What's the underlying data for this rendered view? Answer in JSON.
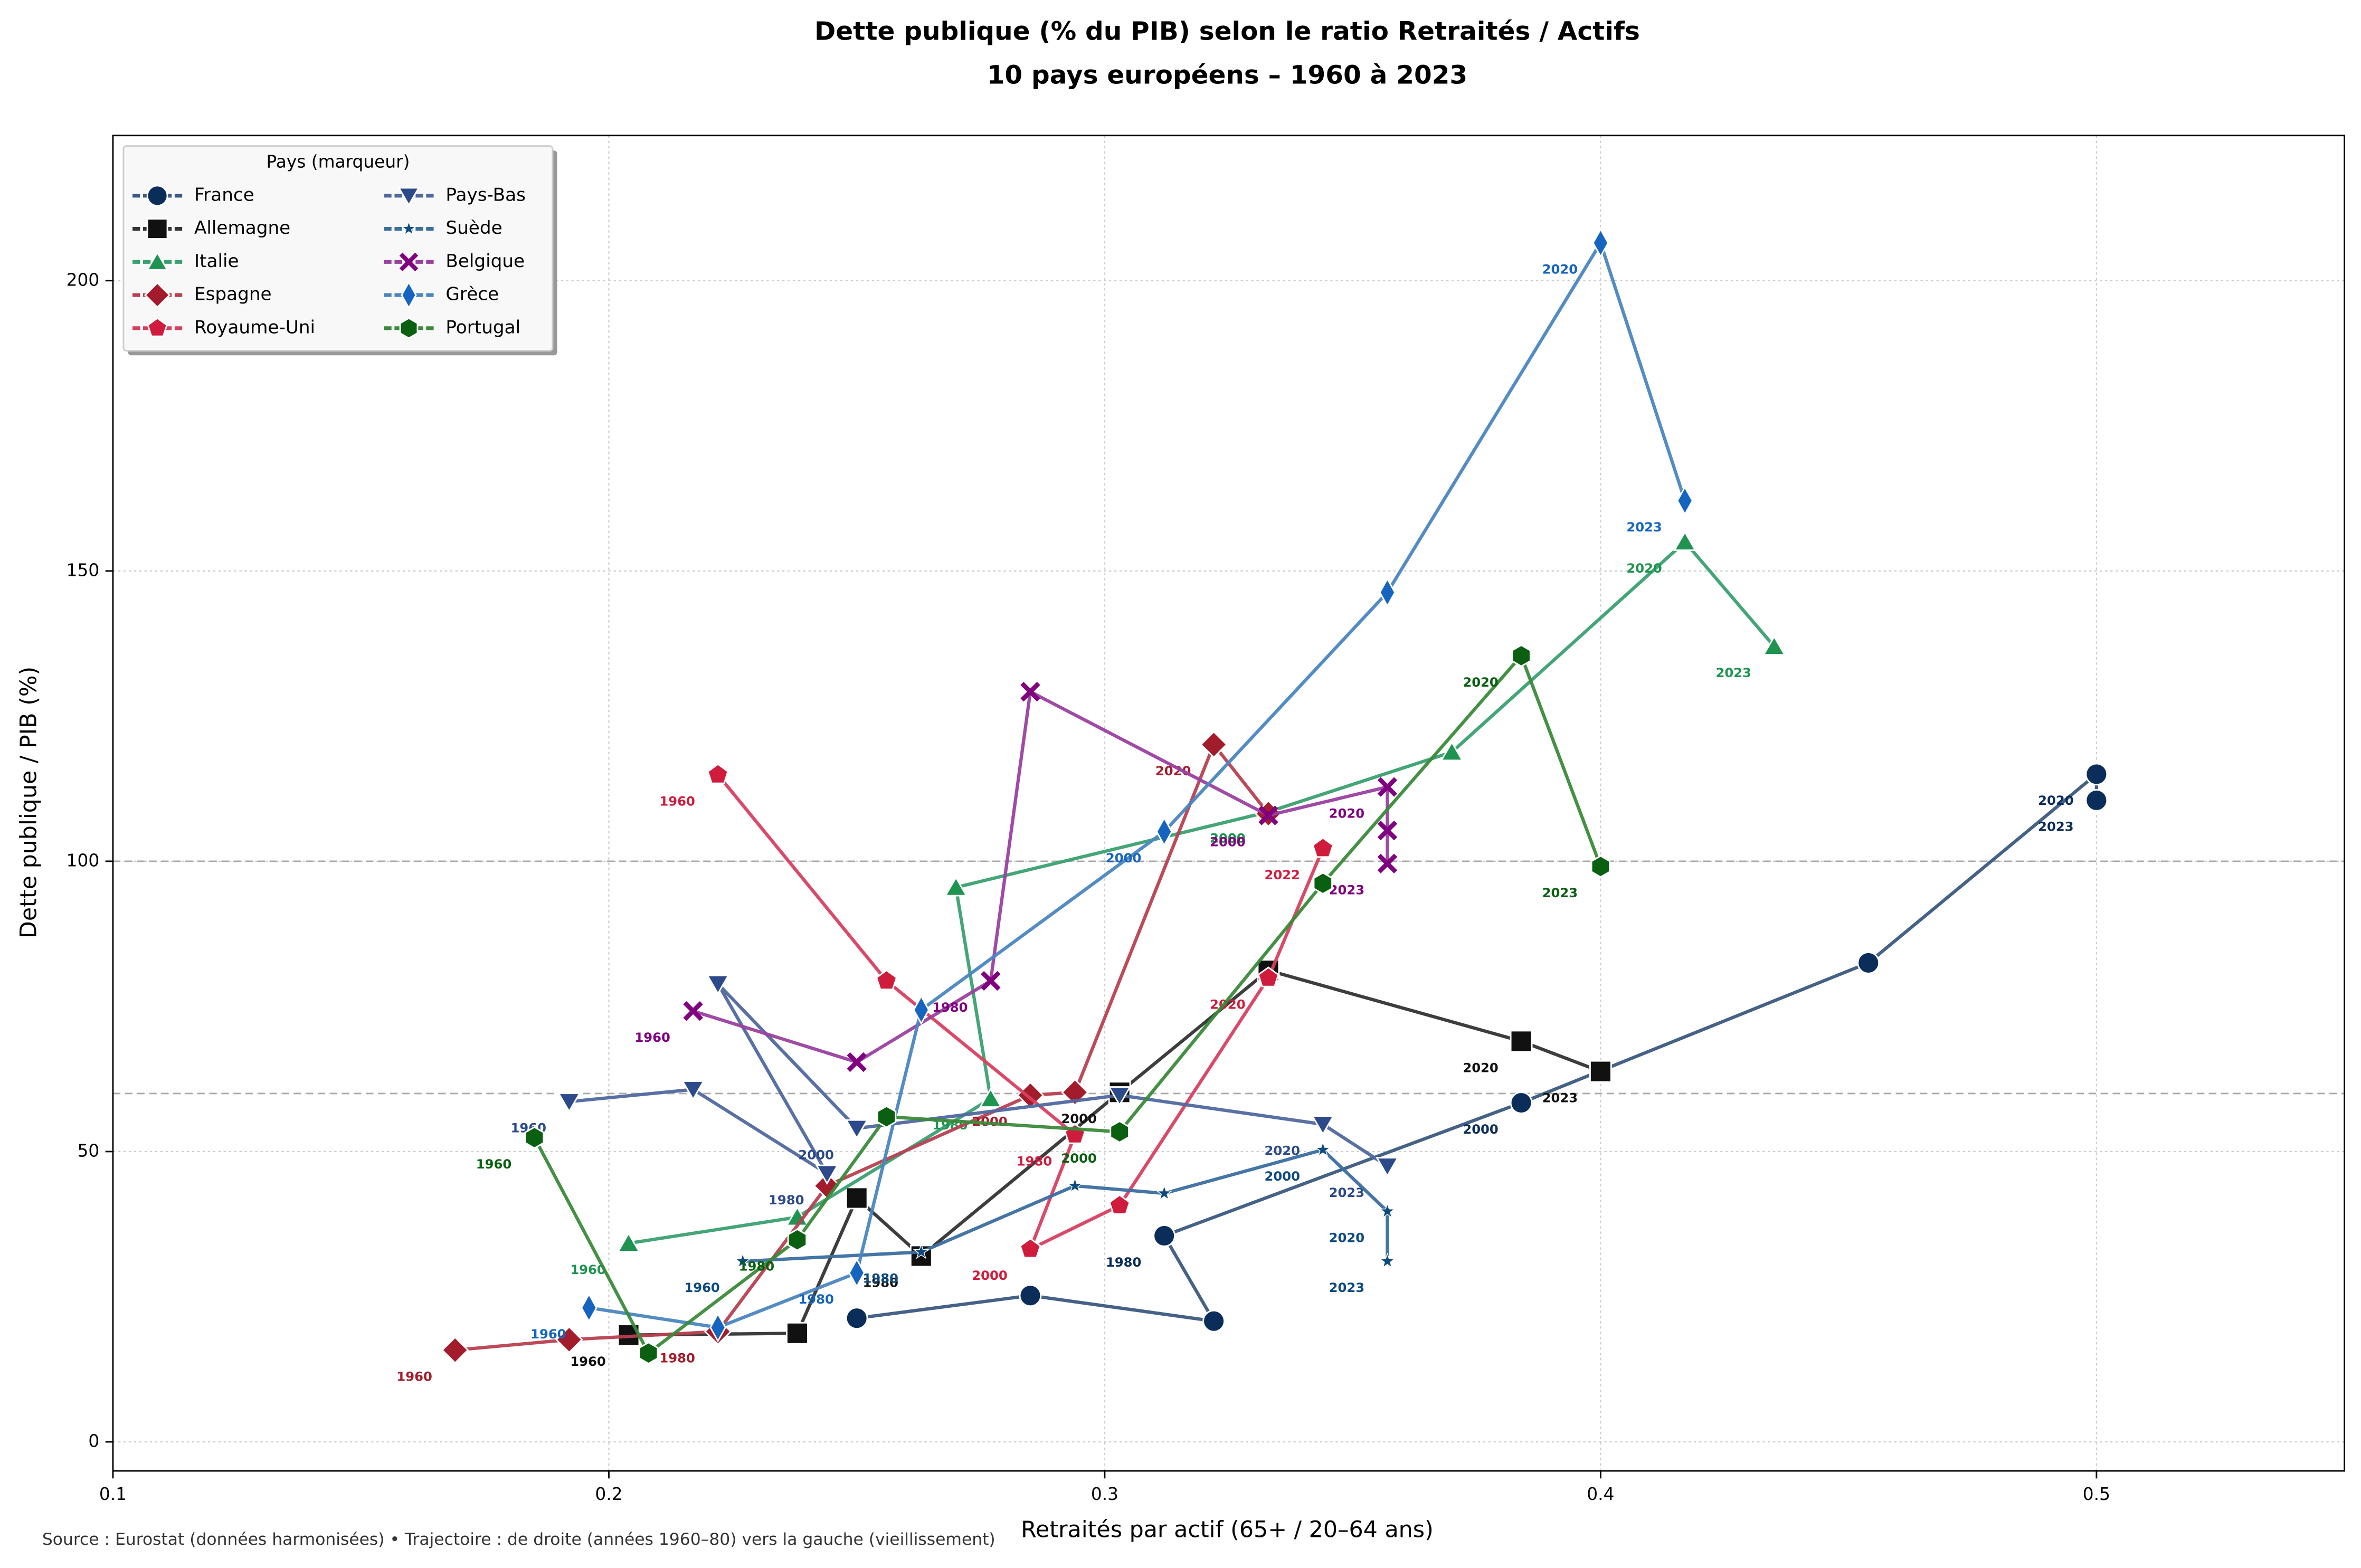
{
  "chart_data": {
    "type": "line",
    "title": "Dette publique (% du PIB) selon le ratio Retraités / Actifs",
    "subtitle": "10 pays européens – 1960 à 2023",
    "x_label": "Retraités par actif (65+ / 20–64 ans)",
    "y_label": "Dette publique / PIB (%)",
    "source": "Source : Eurostat (données harmonisées) • Trajectoire : de droite (années 1960–80) vers la gauche (vieillissement)",
    "legend_title": "Pays (marqueur)",
    "legend_position": "upper left",
    "grid": true,
    "xlim": [
      0.1,
      0.55
    ],
    "ylim": [
      -5,
      225
    ],
    "xticks": [
      0.1,
      0.2,
      0.3,
      0.4,
      0.5
    ],
    "yticks": [
      0,
      50,
      100,
      150,
      200
    ],
    "reference_lines": [
      100,
      60
    ],
    "series": [
      {
        "name": "France",
        "color": "#0b2d5a",
        "line_color": "#3b5a80",
        "marker": "circle",
        "x": [
          0.25,
          0.285,
          0.322,
          0.312,
          0.384,
          0.454,
          0.5,
          0.5
        ],
        "values": [
          21.3,
          25.2,
          20.8,
          35.5,
          58.4,
          82.5,
          115,
          110.5
        ],
        "labels": [
          null,
          null,
          null,
          "1980",
          "2000",
          null,
          "2020",
          "2023"
        ]
      },
      {
        "name": "Allemagne",
        "color": "#111111",
        "line_color": "#333333",
        "marker": "square",
        "x": [
          0.204,
          0.238,
          0.25,
          0.263,
          0.303,
          0.333,
          0.384,
          0.4
        ],
        "values": [
          18.4,
          18.7,
          42,
          32,
          60.2,
          81.2,
          69,
          63.8
        ],
        "labels": [
          "1960",
          null,
          null,
          "1980",
          "2000",
          null,
          "2020",
          "2023"
        ]
      },
      {
        "name": "Italie",
        "color": "#1e9450",
        "line_color": "#3aa070",
        "marker": "triangle-up",
        "x": [
          0.204,
          0.238,
          0.277,
          0.27,
          0.333,
          0.37,
          0.417,
          0.435
        ],
        "values": [
          34.2,
          38.7,
          59.1,
          95.5,
          108.5,
          118.8,
          155,
          137
        ],
        "labels": [
          "1960",
          null,
          "1980",
          null,
          "2000",
          null,
          "2020",
          "2023"
        ]
      },
      {
        "name": "Espagne",
        "color": "#a31c2b",
        "line_color": "#b84050",
        "marker": "diamond",
        "x": [
          0.169,
          0.192,
          0.222,
          0.244,
          0.285,
          0.294,
          0.322,
          0.333
        ],
        "values": [
          15.8,
          17.6,
          19,
          44.1,
          59.7,
          60.2,
          120.1,
          108.2
        ],
        "labels": [
          "1960",
          null,
          "1980",
          null,
          "2000",
          null,
          "2020",
          null
        ]
      },
      {
        "name": "Royaume-Uni",
        "color": "#d01c3c",
        "line_color": "#d84060",
        "marker": "pentagon",
        "x": [
          0.222,
          0.256,
          0.294,
          0.285,
          0.303,
          0.333,
          0.344
        ],
        "values": [
          114.9,
          79.4,
          52.9,
          33.2,
          40.7,
          79.9,
          102.2
        ],
        "labels": [
          "1960",
          null,
          "1980",
          "2000",
          null,
          "2020",
          "2022"
        ]
      },
      {
        "name": "Pays-Bas",
        "color": "#2c4a8a",
        "line_color": "#5068a0",
        "marker": "triangle-down",
        "x": [
          0.192,
          0.217,
          0.244,
          0.222,
          0.25,
          0.303,
          0.344,
          0.357
        ],
        "values": [
          58.6,
          60.7,
          46.2,
          78.9,
          54,
          59.7,
          54.7,
          47.5
        ],
        "labels": [
          "1960",
          null,
          "1980",
          null,
          "2000",
          null,
          "2020",
          "2023"
        ]
      },
      {
        "name": "Suède",
        "color": "#0d4a80",
        "line_color": "#3a6ea0",
        "marker": "star",
        "x": [
          0.227,
          0.263,
          0.294,
          0.312,
          0.344,
          0.357,
          0.357
        ],
        "values": [
          31.1,
          32.7,
          44.1,
          42.8,
          50.3,
          39.7,
          31.1
        ],
        "labels": [
          "1960",
          "1980",
          null,
          null,
          "2000",
          "2020",
          "2023"
        ]
      },
      {
        "name": "Belgique",
        "color": "#800080",
        "line_color": "#9a40a0",
        "marker": "x",
        "x": [
          0.217,
          0.25,
          0.277,
          0.285,
          0.333,
          0.357,
          0.357,
          0.357
        ],
        "values": [
          74.2,
          65.4,
          79.4,
          129.2,
          107.9,
          112.8,
          105.3,
          99.6
        ],
        "labels": [
          "1960",
          null,
          "1980",
          null,
          "2000",
          "2020",
          null,
          "2023"
        ]
      },
      {
        "name": "Grèce",
        "color": "#1565c0",
        "line_color": "#4a86c0",
        "marker": "thin-diamond",
        "x": [
          0.196,
          0.222,
          0.25,
          0.263,
          0.312,
          0.357,
          0.4,
          0.417
        ],
        "values": [
          23.1,
          19.7,
          29.1,
          74.4,
          105.1,
          146.3,
          206.5,
          162.1
        ],
        "labels": [
          "1960",
          null,
          "1980",
          null,
          "2000",
          null,
          "2020",
          "2023"
        ]
      },
      {
        "name": "Portugal",
        "color": "#0a6010",
        "line_color": "#3a8a3a",
        "marker": "hexagon",
        "x": [
          0.185,
          0.208,
          0.238,
          0.256,
          0.303,
          0.344,
          0.384,
          0.4
        ],
        "values": [
          52.4,
          15.3,
          34.8,
          56,
          53.4,
          96.2,
          135.4,
          99.1
        ],
        "labels": [
          "1960",
          null,
          "1980",
          null,
          "2000",
          null,
          "2020",
          "2023"
        ]
      }
    ]
  }
}
